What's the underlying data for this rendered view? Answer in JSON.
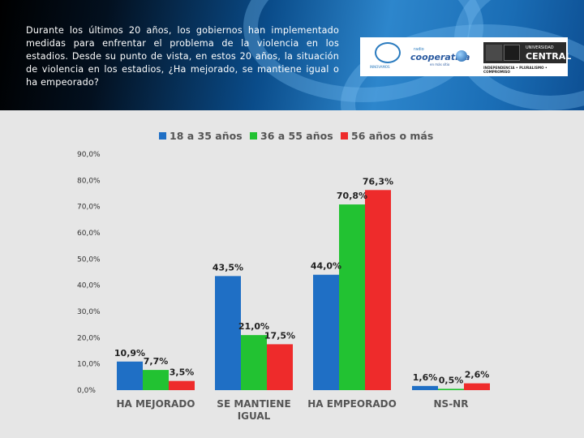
{
  "question": "Durante los últimos 20 años, los gobiernos han implementado medidas para enfrentar el problema de la violencia en los estadios. Desde su punto de vista, en estos 20 años, la situación de violencia en los estadios, ¿Ha mejorado, se mantiene igual o ha empeorado?",
  "logos": {
    "innovamos": "INNOVAMOS",
    "cooperativa_top": "radio",
    "cooperativa": "cooperativa",
    "cooperativa_sub": "en más sitio",
    "uc_line1": "UNIVERSIDAD",
    "uc_line2": "CENTRAL",
    "uc_tagline": "INDEPENDENCIA • PLURALISMO • COMPROMISO"
  },
  "colors": {
    "s1": "#1f6fc5",
    "s2": "#22c232",
    "s3": "#ee2b2b"
  },
  "chart_data": {
    "type": "bar",
    "categories": [
      [
        "HA MEJORADO"
      ],
      [
        "SE MANTIENE",
        "IGUAL"
      ],
      [
        "HA EMPEORADO"
      ],
      [
        "NS-NR"
      ]
    ],
    "series": [
      {
        "name": "18 a 35 años",
        "values": [
          10.9,
          43.5,
          44.0,
          1.6
        ],
        "labels": [
          "10,9%",
          "43,5%",
          "44,0%",
          "1,6%"
        ]
      },
      {
        "name": "36 a 55 años",
        "values": [
          7.7,
          21.0,
          70.8,
          0.5
        ],
        "labels": [
          "7,7%",
          "21,0%",
          "70,8%",
          "0,5%"
        ]
      },
      {
        "name": "56 años o más",
        "values": [
          3.5,
          17.5,
          76.3,
          2.6
        ],
        "labels": [
          "3,5%",
          "17,5%",
          "76,3%",
          "2,6%"
        ]
      }
    ],
    "ylim": [
      0,
      90
    ],
    "yticks": [
      "0,0%",
      "10,0%",
      "20,0%",
      "30,0%",
      "40,0%",
      "50,0%",
      "60,0%",
      "70,0%",
      "80,0%",
      "90,0%"
    ],
    "legend": "top",
    "grid": false
  }
}
